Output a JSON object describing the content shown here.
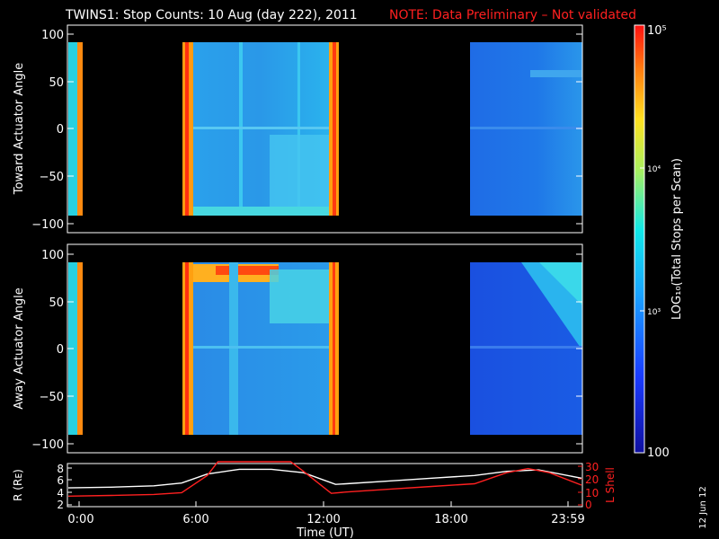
{
  "title": {
    "main": "TWINS1: Stop Counts: 10 Aug (day 222), 2011",
    "note": "NOTE: Data Preliminary – Not validated"
  },
  "stamp": "12 Jun 12",
  "colorbar": {
    "label": "LOG₁₀(Total Stops per Scan)",
    "ticks": [
      "10⁵",
      "10⁴",
      "10³",
      "100"
    ]
  },
  "chart_data": [
    {
      "type": "heatmap",
      "name": "toward",
      "ylabel": "Toward Actuator Angle",
      "ylim": [
        -110,
        110
      ],
      "yticks": [
        "100",
        "50",
        "0",
        "−50",
        "−100"
      ],
      "xlim_hours": [
        0,
        24
      ],
      "data_blocks_hours": [
        [
          0.2,
          0.8
        ],
        [
          5.2,
          12.6
        ],
        [
          18.9,
          24.0
        ]
      ],
      "angle_range": [
        -88,
        90
      ],
      "colorscale": "log10 counts, 100 to 1e5"
    },
    {
      "type": "heatmap",
      "name": "away",
      "ylabel": "Away Actuator Angle",
      "ylim": [
        -110,
        110
      ],
      "yticks": [
        "100",
        "50",
        "0",
        "−50",
        "−100"
      ],
      "xlim_hours": [
        0,
        24
      ],
      "data_blocks_hours": [
        [
          0.2,
          0.8
        ],
        [
          5.2,
          12.6
        ],
        [
          18.9,
          24.0
        ]
      ],
      "angle_range": [
        -88,
        90
      ],
      "colorscale": "log10 counts, 100 to 1e5"
    },
    {
      "type": "line",
      "name": "orbit",
      "xlabel": "Time (UT)",
      "xticks": [
        "0:00",
        "6:00",
        "12:00",
        "18:00",
        "23:59"
      ],
      "ylabel_left": "R (Rᴇ)",
      "ylim_left": [
        2,
        8
      ],
      "yticks_left": [
        "8",
        "6",
        "4",
        "2"
      ],
      "ylabel_right": "L Shell",
      "ylim_right": [
        0,
        30
      ],
      "yticks_right": [
        "30",
        "20",
        "10",
        "0"
      ],
      "series": [
        {
          "axis": "left",
          "color": "#ffffff",
          "x": [
            0,
            2,
            4,
            5.3,
            6.5,
            8,
            9.5,
            11,
            12.5,
            13,
            15,
            17,
            19,
            20.5,
            22,
            24
          ],
          "y": [
            4.6,
            4.7,
            4.9,
            5.3,
            6.6,
            7.3,
            7.3,
            6.8,
            5.1,
            5.2,
            5.6,
            6.0,
            6.4,
            7.0,
            7.2,
            6.0
          ]
        },
        {
          "axis": "right",
          "color": "#ff2020",
          "x": [
            0,
            2,
            4,
            5.3,
            6.5,
            7.0,
            10.4,
            11,
            12.3,
            13,
            15,
            17,
            19,
            20.5,
            21.5,
            22.5,
            24
          ],
          "y": [
            7,
            7.5,
            8.2,
            9.5,
            22,
            32,
            32,
            25,
            9,
            10,
            12,
            14,
            16,
            24,
            27,
            24,
            15
          ]
        }
      ]
    }
  ]
}
